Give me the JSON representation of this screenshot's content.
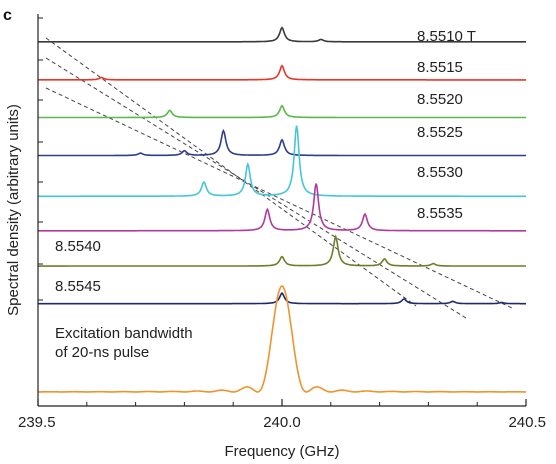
{
  "panel_label": "c",
  "chart_data": {
    "type": "line",
    "xlabel": "Frequency (GHz)",
    "ylabel": "Spectral density (arbitrary units)",
    "xlim": [
      239.5,
      240.5
    ],
    "xticks": [
      "239.5",
      "240.0",
      "240.5"
    ],
    "xtick_values": [
      239.5,
      240.0,
      240.5
    ],
    "grid": false,
    "legend": "none (labels placed at right of each trace)",
    "annotation": [
      "Excitation bandwidth",
      "of 20-ns pulse"
    ],
    "series": [
      {
        "name": "8.5510 T",
        "color": "#3a3a3a",
        "baseline_level": 0.929,
        "peaks": [
          {
            "x": 240.0,
            "height": 0.036
          },
          {
            "x": 240.08,
            "height": 0.006
          }
        ]
      },
      {
        "name": "8.5515",
        "color": "#e8352a",
        "baseline_level": 0.832,
        "peaks": [
          {
            "x": 240.0,
            "height": 0.036
          },
          {
            "x": 239.63,
            "height": 0.006
          }
        ]
      },
      {
        "name": "8.5520",
        "color": "#5cb84a",
        "baseline_level": 0.736,
        "peaks": [
          {
            "x": 240.0,
            "height": 0.03
          },
          {
            "x": 239.77,
            "height": 0.018
          }
        ]
      },
      {
        "name": "8.5525",
        "color": "#2c3e8c",
        "baseline_level": 0.639,
        "peaks": [
          {
            "x": 239.88,
            "height": 0.063
          },
          {
            "x": 240.0,
            "height": 0.04
          },
          {
            "x": 239.8,
            "height": 0.012
          },
          {
            "x": 239.71,
            "height": 0.006
          }
        ]
      },
      {
        "name": "8.5530",
        "color": "#45c6d8",
        "baseline_level": 0.535,
        "peaks": [
          {
            "x": 240.03,
            "height": 0.18
          },
          {
            "x": 239.93,
            "height": 0.081
          },
          {
            "x": 239.84,
            "height": 0.036
          }
        ]
      },
      {
        "name": "8.5535",
        "color": "#b03a9c",
        "baseline_level": 0.447,
        "peaks": [
          {
            "x": 240.07,
            "height": 0.12
          },
          {
            "x": 239.97,
            "height": 0.054
          },
          {
            "x": 240.17,
            "height": 0.042
          }
        ]
      },
      {
        "name": "8.5540",
        "color": "#6f7d28",
        "baseline_level": 0.357,
        "peaks": [
          {
            "x": 240.11,
            "height": 0.075
          },
          {
            "x": 240.0,
            "height": 0.024
          },
          {
            "x": 240.21,
            "height": 0.018
          },
          {
            "x": 240.31,
            "height": 0.006
          }
        ]
      },
      {
        "name": "8.5545",
        "color": "#1f2a6a",
        "baseline_level": 0.261,
        "peaks": [
          {
            "x": 240.0,
            "height": 0.027
          },
          {
            "x": 240.25,
            "height": 0.012
          },
          {
            "x": 240.35,
            "height": 0.006
          },
          {
            "x": 240.45,
            "height": 0.003
          }
        ]
      },
      {
        "name": "Excitation bandwidth of 20-ns pulse",
        "color": "#f0932b",
        "baseline_level": 0.036,
        "function": "sinc squared",
        "center": 240.0,
        "first_zero_offset": 0.05,
        "peak_height": 0.27
      }
    ],
    "guide_lines": {
      "style": "dashed",
      "color": "#444444",
      "count": 3
    }
  }
}
